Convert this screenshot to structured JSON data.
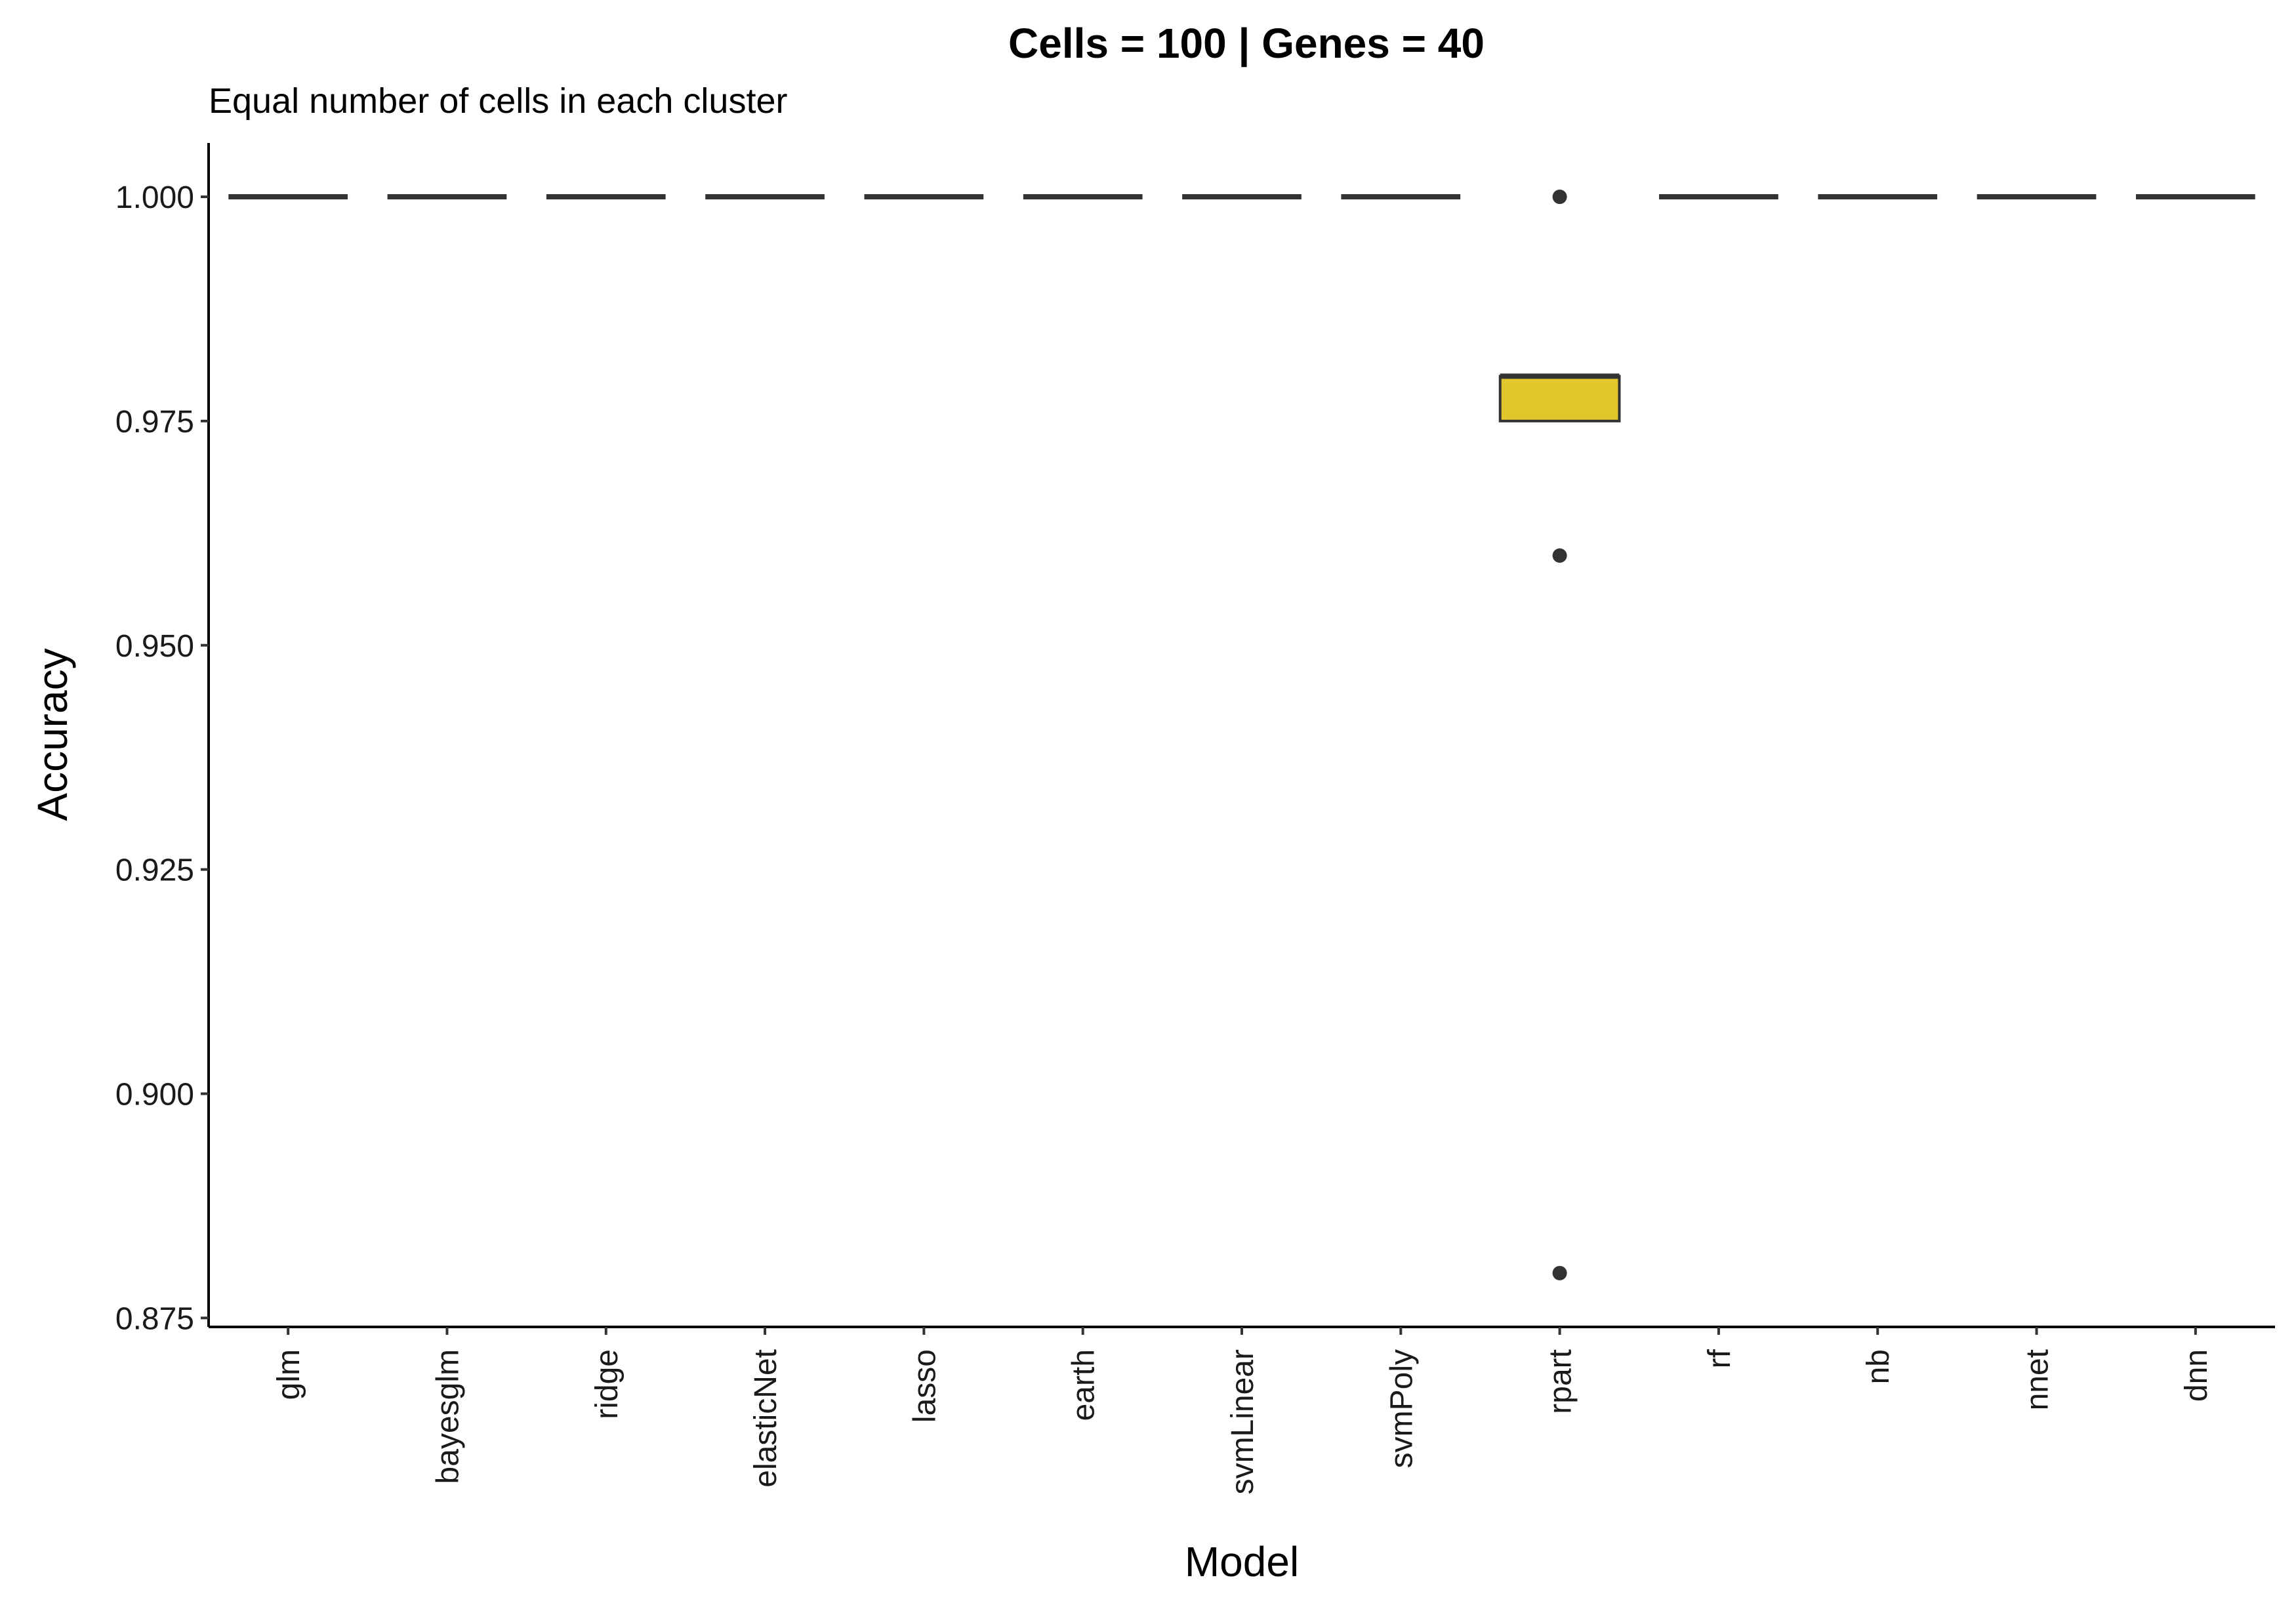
{
  "chart_data": {
    "type": "box",
    "title": "Cells = 100 | Genes = 40",
    "subtitle": "Equal number of cells in each cluster",
    "xlabel": "Model",
    "ylabel": "Accuracy",
    "ylim": [
      0.874,
      1.006
    ],
    "yticks": [
      0.875,
      0.9,
      0.925,
      0.95,
      0.975,
      1.0
    ],
    "ytick_labels": [
      "0.875",
      "0.900",
      "0.925",
      "0.950",
      "0.975",
      "1.000"
    ],
    "categories": [
      "glm",
      "bayesglm",
      "ridge",
      "elasticNet",
      "lasso",
      "earth",
      "svmLinear",
      "svmPoly",
      "rpart",
      "rf",
      "nb",
      "nnet",
      "dnn"
    ],
    "boxes": [
      {
        "category": "glm",
        "q1": 1.0,
        "median": 1.0,
        "q3": 1.0,
        "whisker_low": 1.0,
        "whisker_high": 1.0,
        "outliers": []
      },
      {
        "category": "bayesglm",
        "q1": 1.0,
        "median": 1.0,
        "q3": 1.0,
        "whisker_low": 1.0,
        "whisker_high": 1.0,
        "outliers": []
      },
      {
        "category": "ridge",
        "q1": 1.0,
        "median": 1.0,
        "q3": 1.0,
        "whisker_low": 1.0,
        "whisker_high": 1.0,
        "outliers": []
      },
      {
        "category": "elasticNet",
        "q1": 1.0,
        "median": 1.0,
        "q3": 1.0,
        "whisker_low": 1.0,
        "whisker_high": 1.0,
        "outliers": []
      },
      {
        "category": "lasso",
        "q1": 1.0,
        "median": 1.0,
        "q3": 1.0,
        "whisker_low": 1.0,
        "whisker_high": 1.0,
        "outliers": []
      },
      {
        "category": "earth",
        "q1": 1.0,
        "median": 1.0,
        "q3": 1.0,
        "whisker_low": 1.0,
        "whisker_high": 1.0,
        "outliers": []
      },
      {
        "category": "svmLinear",
        "q1": 1.0,
        "median": 1.0,
        "q3": 1.0,
        "whisker_low": 1.0,
        "whisker_high": 1.0,
        "outliers": []
      },
      {
        "category": "svmPoly",
        "q1": 1.0,
        "median": 1.0,
        "q3": 1.0,
        "whisker_low": 1.0,
        "whisker_high": 1.0,
        "outliers": []
      },
      {
        "category": "rpart",
        "q1": 0.975,
        "median": 0.98,
        "q3": 0.98,
        "whisker_low": 0.975,
        "whisker_high": 0.98,
        "outliers": [
          1.0,
          0.96,
          0.88
        ]
      },
      {
        "category": "rf",
        "q1": 1.0,
        "median": 1.0,
        "q3": 1.0,
        "whisker_low": 1.0,
        "whisker_high": 1.0,
        "outliers": []
      },
      {
        "category": "nb",
        "q1": 1.0,
        "median": 1.0,
        "q3": 1.0,
        "whisker_low": 1.0,
        "whisker_high": 1.0,
        "outliers": []
      },
      {
        "category": "nnet",
        "q1": 1.0,
        "median": 1.0,
        "q3": 1.0,
        "whisker_low": 1.0,
        "whisker_high": 1.0,
        "outliers": []
      },
      {
        "category": "dnn",
        "q1": 1.0,
        "median": 1.0,
        "q3": 1.0,
        "whisker_low": 1.0,
        "whisker_high": 1.0,
        "outliers": []
      }
    ],
    "grid": false,
    "legend": "none",
    "colors": {
      "box_fill": "#E2C62B",
      "box_line": "#333333",
      "outlier": "#333333",
      "axis": "#000000"
    }
  }
}
